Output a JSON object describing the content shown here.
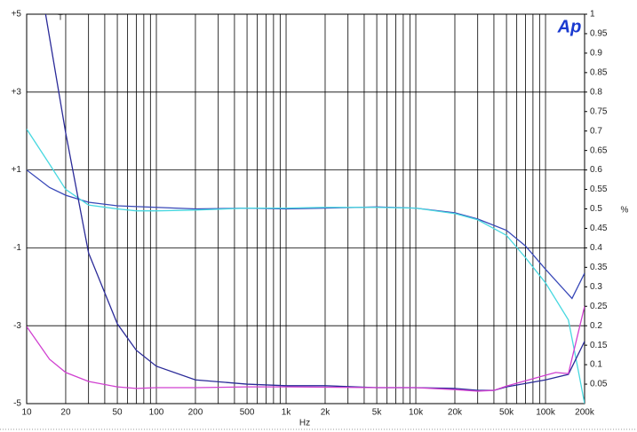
{
  "chart_data": {
    "type": "line",
    "xlabel": "Hz",
    "y2label": "%",
    "logo": "Ap",
    "marker": "T",
    "xscale": "log",
    "grid": true,
    "xlim": [
      10,
      200000
    ],
    "xticks": [
      10,
      20,
      50,
      100,
      200,
      500,
      {
        "value": 1000,
        "label": "1k"
      },
      {
        "value": 2000,
        "label": "2k"
      },
      {
        "value": 5000,
        "label": "5k"
      },
      {
        "value": 10000,
        "label": "10k"
      },
      {
        "value": 20000,
        "label": "20k"
      },
      {
        "value": 50000,
        "label": "50k"
      },
      {
        "value": 100000,
        "label": "100k"
      },
      {
        "value": 200000,
        "label": "200k"
      }
    ],
    "xminorticks": [
      30,
      40,
      60,
      70,
      80,
      90,
      300,
      400,
      600,
      700,
      800,
      900,
      3000,
      4000,
      6000,
      7000,
      8000,
      9000,
      30000,
      40000,
      60000,
      70000,
      80000,
      90000
    ],
    "ylim": [
      -5,
      5
    ],
    "yticks": [
      {
        "value": 5,
        "label": "+5"
      },
      {
        "value": 3,
        "label": "+3"
      },
      {
        "value": 1,
        "label": "+1"
      },
      -1,
      -3,
      -5
    ],
    "y2lim": [
      0,
      1
    ],
    "y2ticks": [
      0.05,
      0.1,
      0.15,
      0.2,
      0.25,
      0.3,
      0.35,
      0.4,
      0.45,
      0.5,
      0.55,
      0.6,
      0.65,
      0.7,
      0.75,
      0.8,
      0.85,
      0.9,
      0.95,
      1
    ],
    "series": [
      {
        "color": "#3848b8",
        "x": [
          10,
          15,
          20,
          30,
          50,
          100,
          200,
          500,
          1000,
          2000,
          5000,
          10000,
          20000,
          30000,
          50000,
          70000,
          100000,
          160000,
          200000
        ],
        "values": [
          1.0,
          0.55,
          0.35,
          0.17,
          0.08,
          0.04,
          0.0,
          0.02,
          0.0,
          0.02,
          0.05,
          0.02,
          -0.1,
          -0.26,
          -0.55,
          -0.95,
          -1.55,
          -2.3,
          -1.65
        ]
      },
      {
        "color": "#48d8e0",
        "x": [
          10,
          15,
          20,
          30,
          50,
          70,
          100,
          200,
          500,
          1000,
          2000,
          5000,
          10000,
          20000,
          30000,
          50000,
          70000,
          100000,
          150000,
          180000,
          200000
        ],
        "values": [
          2.05,
          1.15,
          0.5,
          0.1,
          0.0,
          -0.05,
          -0.05,
          -0.03,
          0.02,
          0.02,
          0.04,
          0.04,
          0.02,
          -0.12,
          -0.28,
          -0.68,
          -1.25,
          -1.9,
          -2.85,
          -4.2,
          -5.0
        ]
      },
      {
        "color": "#2a2a98",
        "axis": "y2",
        "x": [
          14,
          20,
          30,
          50,
          70,
          100,
          200,
          500,
          1000,
          2000,
          5000,
          10000,
          20000,
          30000,
          40000,
          50000,
          100000,
          150000,
          200000
        ],
        "values": [
          1.0,
          0.695,
          0.387,
          0.205,
          0.137,
          0.096,
          0.061,
          0.05,
          0.046,
          0.046,
          0.041,
          0.041,
          0.039,
          0.034,
          0.034,
          0.043,
          0.061,
          0.075,
          0.16
        ]
      },
      {
        "color": "#d040d0",
        "axis": "y2",
        "x": [
          10,
          15,
          20,
          30,
          50,
          70,
          100,
          200,
          500,
          1000,
          5000,
          10000,
          20000,
          30000,
          40000,
          50000,
          100000,
          120000,
          150000,
          200000
        ],
        "values": [
          0.198,
          0.114,
          0.08,
          0.057,
          0.043,
          0.039,
          0.041,
          0.041,
          0.043,
          0.043,
          0.041,
          0.041,
          0.036,
          0.032,
          0.034,
          0.045,
          0.073,
          0.08,
          0.077,
          0.25
        ]
      }
    ]
  }
}
